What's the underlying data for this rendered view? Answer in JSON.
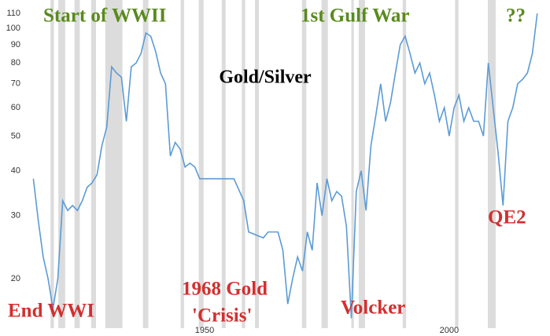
{
  "chart_data": {
    "type": "line",
    "title": "Gold/Silver",
    "log_scale": true,
    "grid": false,
    "xlim": [
      1913,
      2019
    ],
    "xticks": [
      1950,
      2000
    ],
    "ylim": [
      15.15,
      119.9
    ],
    "yticks": [
      20,
      30,
      40,
      50,
      60,
      70,
      80,
      90,
      100,
      110
    ],
    "recession_color": "#dcdcdc",
    "recessions": [
      [
        1918.5,
        1919.2
      ],
      [
        1920.1,
        1921.5
      ],
      [
        1923.4,
        1924.5
      ],
      [
        1926.8,
        1927.8
      ],
      [
        1929.7,
        1933.2
      ],
      [
        1937.4,
        1938.5
      ],
      [
        1945.1,
        1945.8
      ],
      [
        1948.8,
        1949.8
      ],
      [
        1953.5,
        1954.3
      ],
      [
        1957.6,
        1958.3
      ],
      [
        1960.3,
        1961.1
      ],
      [
        1969.9,
        1970.8
      ],
      [
        1973.9,
        1975.2
      ],
      [
        1980.0,
        1980.5
      ],
      [
        1981.5,
        1982.8
      ],
      [
        1990.5,
        1991.2
      ],
      [
        2001.2,
        2001.9
      ],
      [
        2007.9,
        2009.5
      ]
    ],
    "x": [
      1915,
      1916,
      1917,
      1918,
      1919,
      1920,
      1921,
      1922,
      1923,
      1924,
      1925,
      1926,
      1927,
      1928,
      1929,
      1930,
      1931,
      1932,
      1933,
      1934,
      1935,
      1936,
      1937,
      1938,
      1939,
      1940,
      1941,
      1942,
      1943,
      1944,
      1945,
      1946,
      1947,
      1948,
      1949,
      1950,
      1955,
      1956,
      1958,
      1959,
      1962,
      1963,
      1965,
      1966,
      1967,
      1968,
      1969,
      1970,
      1971,
      1972,
      1973,
      1974,
      1975,
      1976,
      1977,
      1978,
      1979,
      1980,
      1981,
      1982,
      1983,
      1984,
      1985,
      1986,
      1987,
      1988,
      1989,
      1990,
      1991,
      1992,
      1993,
      1994,
      1995,
      1996,
      1997,
      1998,
      1999,
      2000,
      2001,
      2002,
      2003,
      2004,
      2005,
      2006,
      2007,
      2008,
      2009,
      2010,
      2011,
      2012,
      2013,
      2014,
      2015,
      2016,
      2017,
      2018
    ],
    "series": [
      {
        "name": "Gold/Silver",
        "color": "#5b9bd5",
        "values": [
          38,
          29,
          23,
          20,
          16.5,
          20,
          33,
          31,
          32,
          31,
          33,
          36,
          37,
          39,
          47,
          53,
          78,
          75,
          73,
          55,
          78,
          80,
          85,
          97,
          95,
          86,
          75,
          70,
          44,
          48,
          46,
          41,
          42,
          41,
          38,
          38,
          38,
          38,
          33,
          27,
          26,
          27,
          27,
          24,
          17,
          20,
          23,
          21,
          27,
          24,
          37,
          30,
          38,
          33,
          35,
          34,
          28,
          15.5,
          35,
          40,
          31,
          47,
          57,
          70,
          55,
          62,
          75,
          90,
          95,
          85,
          75,
          80,
          70,
          75,
          65,
          55,
          60,
          50,
          60,
          65,
          55,
          60,
          55,
          55,
          50,
          80,
          60,
          45,
          32,
          55,
          60,
          70,
          72,
          75,
          85,
          110
        ]
      }
    ],
    "annotations": [
      {
        "text": "Start of WWII",
        "color": "#5a8a1e"
      },
      {
        "text": "1st Gulf War",
        "color": "#5a8a1e"
      },
      {
        "text": "??",
        "color": "#5a8a1e"
      },
      {
        "text": "1968 Gold",
        "color": "#d32f2f"
      },
      {
        "text": "'Crisis'",
        "color": "#d32f2f"
      },
      {
        "text": "End WWI",
        "color": "#d32f2f"
      },
      {
        "text": "Volcker",
        "color": "#d32f2f"
      },
      {
        "text": "QE2",
        "color": "#d32f2f"
      }
    ]
  }
}
